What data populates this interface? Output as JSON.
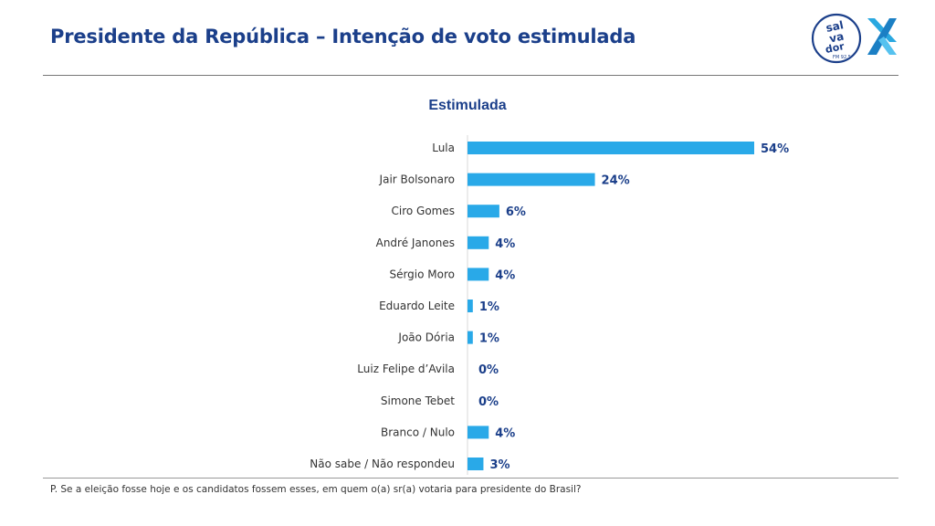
{
  "header": {
    "title": "Presidente da República – Intenção de voto estimulada",
    "logo_text": [
      "sal",
      "va",
      "dor",
      "FM 92.5"
    ]
  },
  "footer": {
    "question": "P. Se a eleição fosse hoje e os candidatos fossem esses, em quem o(a) sr(a) votaria para presidente do Brasil?"
  },
  "colors": {
    "bar": "#29a9e8",
    "title": "#1b3f8a",
    "logo_x": "#2aa8e0",
    "logo_circle": "#1b3f8a"
  },
  "chart_data": {
    "type": "bar",
    "orientation": "horizontal",
    "title": "Estimulada",
    "categories": [
      "Lula",
      "Jair Bolsonaro",
      "Ciro Gomes",
      "André Janones",
      "Sérgio Moro",
      "Eduardo Leite",
      "João Dória",
      "Luiz Felipe d’Avila",
      "Simone Tebet",
      "Branco / Nulo",
      "Não sabe / Não respondeu"
    ],
    "values": [
      54,
      24,
      6,
      4,
      4,
      1,
      1,
      0,
      0,
      4,
      3
    ],
    "data_labels": [
      "54%",
      "24%",
      "6%",
      "4%",
      "4%",
      "1%",
      "1%",
      "0%",
      "0%",
      "4%",
      "3%"
    ],
    "xlim": [
      0,
      54
    ],
    "grid": false,
    "legend": "none"
  }
}
